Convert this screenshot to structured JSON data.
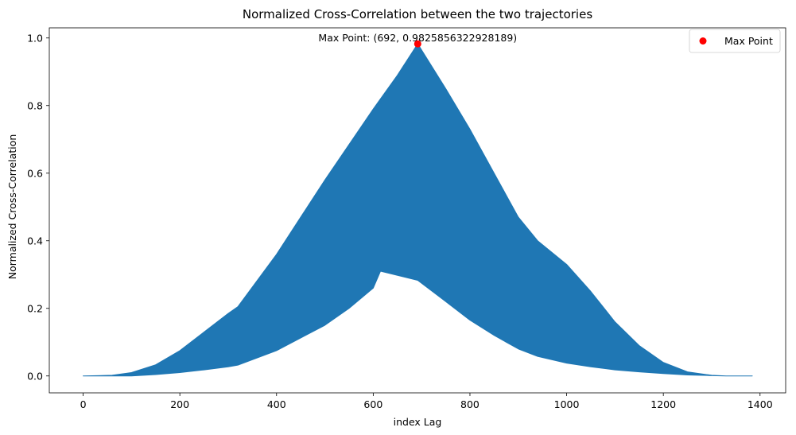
{
  "chart_data": {
    "type": "area",
    "title": "Normalized Cross-Correlation between the two trajectories",
    "xlabel": "index Lag",
    "ylabel": "Normalized Cross-Correlation",
    "xlim": [
      -70,
      1453
    ],
    "ylim": [
      -0.05,
      1.03
    ],
    "xticks": [
      0,
      200,
      400,
      600,
      800,
      1000,
      1200,
      1400
    ],
    "yticks": [
      0.0,
      0.2,
      0.4,
      0.6,
      0.8,
      1.0
    ],
    "xtick_labels": [
      "0",
      "200",
      "400",
      "600",
      "800",
      "1000",
      "1200",
      "1400"
    ],
    "ytick_labels": [
      "0.0",
      "0.2",
      "0.4",
      "0.6",
      "0.8",
      "1.0"
    ],
    "grid": false,
    "series": [
      {
        "color": "#1f77b4",
        "upper_envelope": {
          "x": [
            0,
            60,
            100,
            150,
            200,
            250,
            300,
            320,
            400,
            500,
            600,
            650,
            692,
            750,
            800,
            850,
            900,
            940,
            1000,
            1050,
            1100,
            1150,
            1200,
            1250,
            1300,
            1330,
            1384
          ],
          "y": [
            0.0,
            0.002,
            0.01,
            0.033,
            0.075,
            0.13,
            0.185,
            0.205,
            0.36,
            0.58,
            0.79,
            0.89,
            0.983,
            0.85,
            0.73,
            0.6,
            0.47,
            0.4,
            0.33,
            0.25,
            0.16,
            0.09,
            0.04,
            0.012,
            0.002,
            0.0,
            0.0
          ]
        },
        "lower_envelope": {
          "x": [
            0,
            60,
            100,
            150,
            200,
            250,
            300,
            320,
            400,
            500,
            550,
            600,
            615,
            692,
            750,
            800,
            850,
            900,
            940,
            1000,
            1050,
            1100,
            1150,
            1200,
            1250,
            1300,
            1330,
            1384
          ],
          "y": [
            0.0,
            0.0,
            0.0,
            0.004,
            0.01,
            0.018,
            0.027,
            0.032,
            0.075,
            0.15,
            0.2,
            0.26,
            0.31,
            0.283,
            0.22,
            0.165,
            0.12,
            0.08,
            0.058,
            0.038,
            0.027,
            0.018,
            0.012,
            0.007,
            0.003,
            0.001,
            0.0,
            0.0
          ]
        }
      }
    ],
    "max_point": {
      "x": 692,
      "y": 0.9825856322928189,
      "color": "#ff0000"
    },
    "annotation": "Max Point: (692, 0.9825856322928189)",
    "legend": {
      "placement": "top-right",
      "entries": [
        {
          "label": "Max Point",
          "color": "#ff0000",
          "marker": "circle"
        }
      ]
    }
  }
}
